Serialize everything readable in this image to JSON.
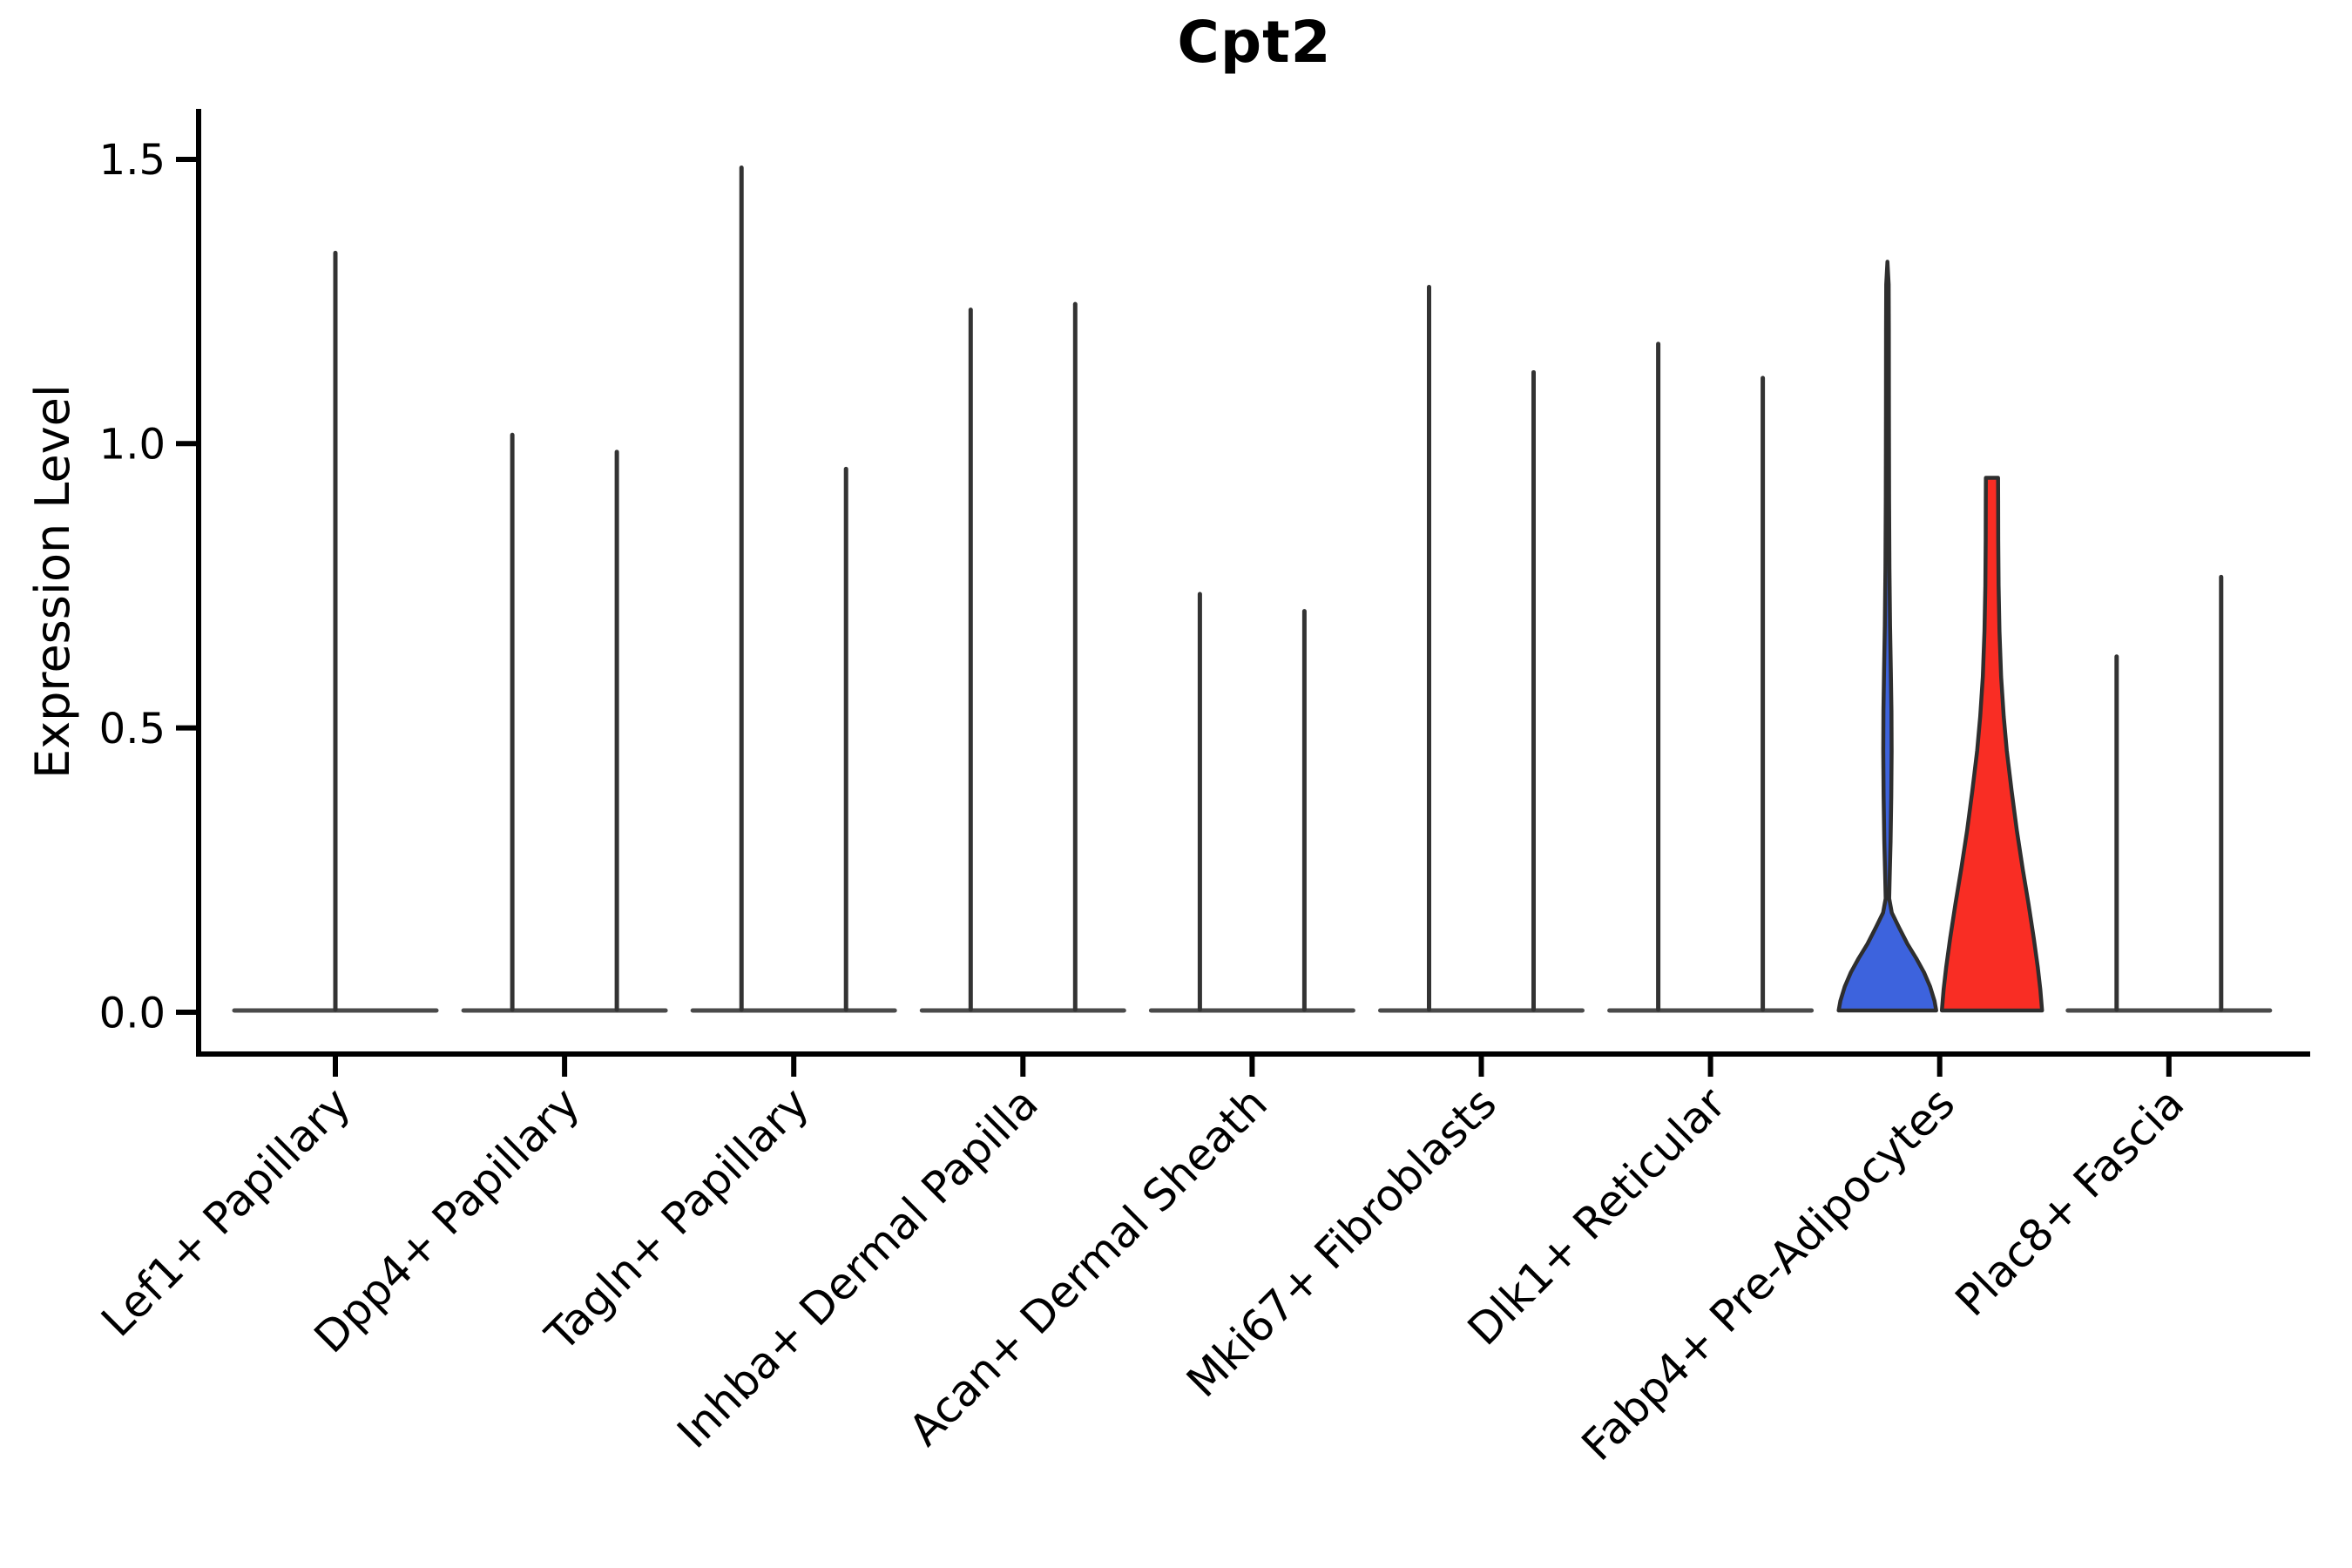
{
  "title": "Cpt2",
  "y_axis": {
    "label": "Expression Level",
    "tick_labels": [
      "0.0",
      "0.5",
      "1.0",
      "1.5"
    ]
  },
  "categories": [
    "Lef1+ Papillary",
    "Dpp4+ Papillary",
    "Tagln+ Papillary",
    "Inhba+ Dermal Papilla",
    "Acan+ Dermal Sheath",
    "Mki67+ Fibroblasts",
    "Dlk1+ Reticular",
    "Fabp4+ Pre-Adipocytes",
    "Plac8+ Fascia"
  ],
  "colors": {
    "blue_fill": "#3D63DD",
    "red_fill": "#F92D24",
    "outline": "#2E2E2E",
    "spike": "#333333",
    "baseline": "#4A4A4A",
    "axis": "#000000",
    "text": "#000000",
    "background": "#FFFFFF"
  },
  "chart_data": {
    "type": "violin",
    "title": "Cpt2",
    "xlabel": "",
    "ylabel": "Expression Level",
    "ylim": [
      0.0,
      1.55
    ],
    "yticks": [
      0.0,
      0.5,
      1.0,
      1.5
    ],
    "ytick_labels": [
      "0.0",
      "0.5",
      "1.0",
      "1.5"
    ],
    "grid": false,
    "legend_position": "none",
    "categories": [
      "Lef1+ Papillary",
      "Dpp4+ Papillary",
      "Tagln+ Papillary",
      "Inhba+ Dermal Papilla",
      "Acan+ Dermal Sheath",
      "Mki67+ Fibroblasts",
      "Dlk1+ Reticular",
      "Fabp4+ Pre-Adipocytes",
      "Plac8+ Fascia"
    ],
    "description": "Expression of Cpt2: most violins collapse to a flat density at 0 with a thin spike to the maximum expressed value; the Fabp4+ Pre-Adipocytes category shows two filled split violins (blue and red groups).",
    "violins": [
      {
        "category_index": 0,
        "group": "full",
        "color": "outline",
        "max_expression": 1.34
      },
      {
        "category_index": 1,
        "group": "left",
        "color": "outline",
        "max_expression": 1.02
      },
      {
        "category_index": 1,
        "group": "right",
        "color": "outline",
        "max_expression": 0.99
      },
      {
        "category_index": 2,
        "group": "left",
        "color": "outline",
        "max_expression": 1.49
      },
      {
        "category_index": 2,
        "group": "right",
        "color": "outline",
        "max_expression": 0.96
      },
      {
        "category_index": 3,
        "group": "left",
        "color": "outline",
        "max_expression": 1.24
      },
      {
        "category_index": 3,
        "group": "right",
        "color": "outline",
        "max_expression": 1.25
      },
      {
        "category_index": 4,
        "group": "left",
        "color": "outline",
        "max_expression": 0.74
      },
      {
        "category_index": 4,
        "group": "right",
        "color": "outline",
        "max_expression": 0.71
      },
      {
        "category_index": 5,
        "group": "left",
        "color": "outline",
        "max_expression": 1.28
      },
      {
        "category_index": 5,
        "group": "right",
        "color": "outline",
        "max_expression": 1.13
      },
      {
        "category_index": 6,
        "group": "left",
        "color": "outline",
        "max_expression": 1.18
      },
      {
        "category_index": 6,
        "group": "right",
        "color": "outline",
        "max_expression": 1.12
      },
      {
        "category_index": 7,
        "group": "left",
        "color": "blue",
        "max_expression": 1.32,
        "flat_top": false,
        "profile": [
          [
            0,
            56
          ],
          [
            0.02,
            54
          ],
          [
            0.045,
            49
          ],
          [
            0.07,
            42
          ],
          [
            0.095,
            33
          ],
          [
            0.12,
            23
          ],
          [
            0.15,
            13
          ],
          [
            0.175,
            5
          ],
          [
            0.2,
            2
          ],
          [
            0.24,
            2.6
          ],
          [
            0.3,
            3.6
          ],
          [
            0.38,
            4.4
          ],
          [
            0.46,
            4.8
          ],
          [
            0.53,
            4.6
          ],
          [
            0.6,
            3.9
          ],
          [
            0.68,
            3.0
          ],
          [
            0.78,
            2.3
          ],
          [
            0.9,
            1.9
          ],
          [
            1.05,
            1.7
          ],
          [
            1.2,
            1.6
          ],
          [
            1.28,
            1.4
          ],
          [
            1.32,
            0
          ]
        ]
      },
      {
        "category_index": 7,
        "group": "right",
        "color": "red",
        "max_expression": 0.94,
        "flat_top": true,
        "profile": [
          [
            0,
            57.5
          ],
          [
            0.04,
            55.5
          ],
          [
            0.08,
            52.5
          ],
          [
            0.13,
            48
          ],
          [
            0.19,
            42
          ],
          [
            0.25,
            35.5
          ],
          [
            0.32,
            28.5
          ],
          [
            0.39,
            22.5
          ],
          [
            0.46,
            17
          ],
          [
            0.52,
            13.5
          ],
          [
            0.59,
            10.5
          ],
          [
            0.67,
            8.6
          ],
          [
            0.75,
            7.6
          ],
          [
            0.83,
            7.2
          ],
          [
            0.9,
            7.1
          ],
          [
            0.94,
            7.0
          ]
        ]
      },
      {
        "category_index": 8,
        "group": "left",
        "color": "outline",
        "max_expression": 0.63
      },
      {
        "category_index": 8,
        "group": "right",
        "color": "outline",
        "max_expression": 0.77
      }
    ]
  }
}
